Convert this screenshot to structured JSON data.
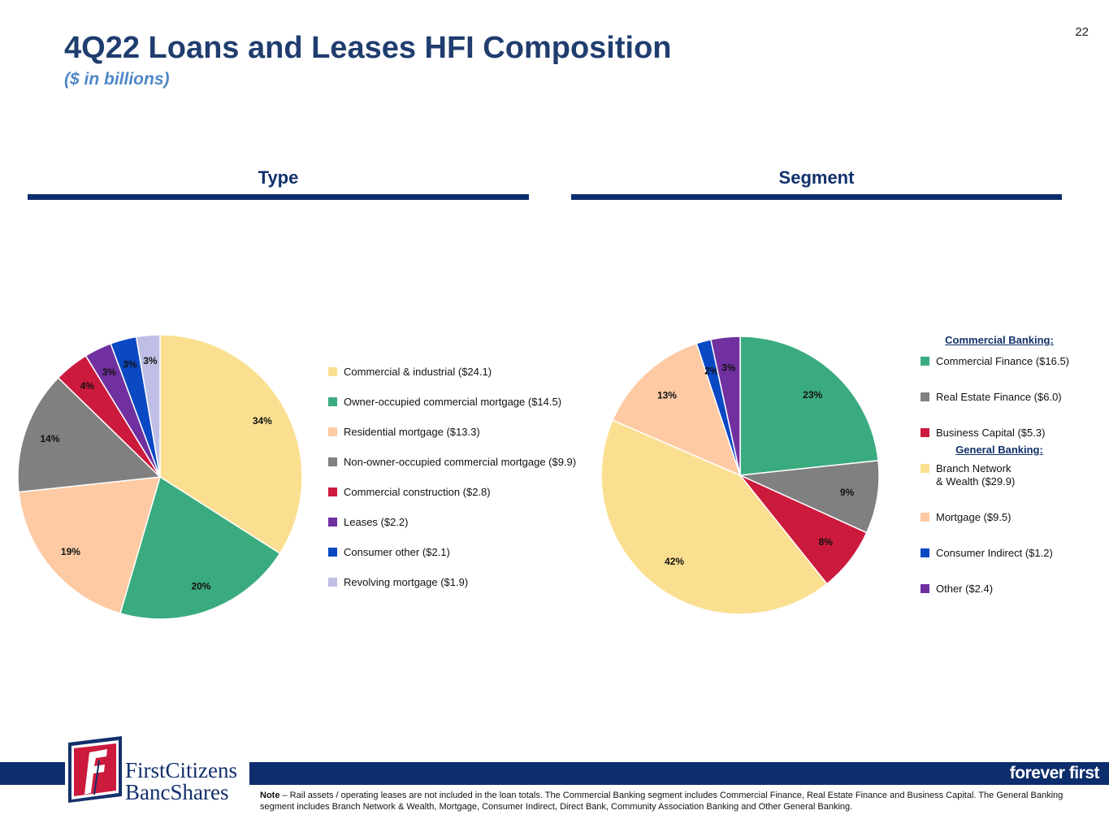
{
  "page_number": "22",
  "title": "4Q22 Loans and Leases HFI Composition",
  "subtitle": "($ in billions)",
  "sections": {
    "type_heading": "Type",
    "segment_heading": "Segment"
  },
  "colors": {
    "navy": "#0d2d6c",
    "yellow": "#fbdf91",
    "green": "#3aab7f",
    "peach": "#fdcaa3",
    "gray": "#808080",
    "crimson": "#cc1a3d",
    "purple": "#7030a0",
    "blue": "#0a48c4",
    "lavender": "#bfbfe6"
  },
  "chart_data": [
    {
      "type": "pie",
      "title": "Type",
      "labels": [
        "Commercial & industrial ($24.1)",
        "Owner-occupied commercial mortgage ($14.5)",
        "Residential mortgage ($13.3)",
        "Non-owner-occupied commercial mortgage ($9.9)",
        "Commercial construction ($2.8)",
        "Leases ($2.2)",
        "Consumer other ($2.1)",
        "Revolving mortgage ($1.9)"
      ],
      "values": [
        24.1,
        14.5,
        13.3,
        9.9,
        2.8,
        2.2,
        2.1,
        1.9
      ],
      "percent_labels": [
        "34%",
        "20%",
        "19%",
        "14%",
        "4%",
        "3%",
        "3%",
        "3%"
      ],
      "colors": [
        "#fbdf91",
        "#3aab7f",
        "#fdcaa3",
        "#808080",
        "#cc1a3d",
        "#7030a0",
        "#0a48c4",
        "#bfbfe6"
      ],
      "legend_position": "right"
    },
    {
      "type": "pie",
      "title": "Segment",
      "labels": [
        "Commercial Finance ($16.5)",
        "Real Estate Finance ($6.0)",
        "Business Capital ($5.3)",
        "Branch Network\n& Wealth ($29.9)",
        "Mortgage ($9.5)",
        "Consumer Indirect ($1.2)",
        "Other ($2.4)"
      ],
      "values": [
        16.5,
        6.0,
        5.3,
        29.9,
        9.5,
        1.2,
        2.4
      ],
      "percent_labels": [
        "23%",
        "9%",
        "8%",
        "42%",
        "13%",
        "2%",
        "3%"
      ],
      "colors": [
        "#3aab7f",
        "#808080",
        "#cc1a3d",
        "#fbdf91",
        "#fdcaa3",
        "#0a48c4",
        "#7030a0"
      ],
      "legend_groups": [
        {
          "heading": "Commercial Banking:",
          "items": [
            0,
            1,
            2
          ]
        },
        {
          "heading": "General Banking:",
          "items": [
            3,
            4,
            5,
            6
          ]
        }
      ],
      "legend_position": "right"
    }
  ],
  "logo": {
    "line1": "FirstCitizens",
    "line2": "BancShares"
  },
  "tagline": "forever first",
  "footnote": {
    "bold": "Note",
    "text": " – Rail assets / operating leases are not included in the loan totals. The Commercial Banking segment includes Commercial Finance, Real Estate Finance and Business Capital. The General Banking segment includes Branch Network & Wealth, Mortgage, Consumer Indirect, Direct Bank, Community Association Banking and Other General Banking."
  }
}
